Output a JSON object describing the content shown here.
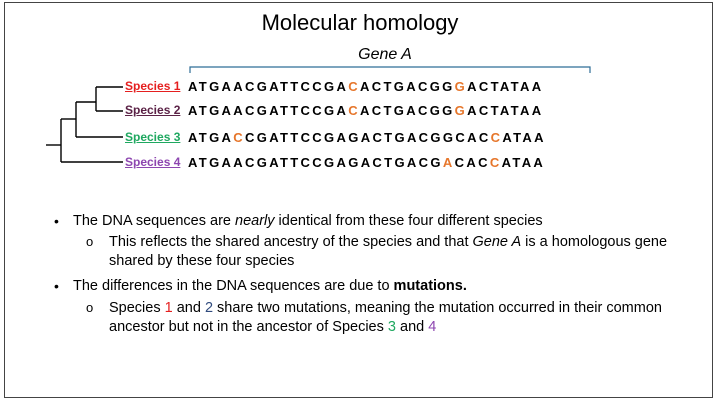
{
  "title": "Molecular homology",
  "gene_label": "Gene A",
  "rows": [
    {
      "species": "Species 1",
      "color": "#e51f1f",
      "seq_parts": [
        {
          "t": "ATGAACGATTCCGA",
          "m": false
        },
        {
          "t": "C",
          "m": true
        },
        {
          "t": "ACTGACGG",
          "m": false
        },
        {
          "t": "G",
          "m": true
        },
        {
          "t": "ACTATAA",
          "m": false
        }
      ]
    },
    {
      "species": "Species 2",
      "color": "#5b2246",
      "seq_parts": [
        {
          "t": "ATGAACGATTCCGA",
          "m": false
        },
        {
          "t": "C",
          "m": true
        },
        {
          "t": "ACTGACGG",
          "m": false
        },
        {
          "t": "G",
          "m": true
        },
        {
          "t": "ACTATAA",
          "m": false
        }
      ]
    },
    {
      "species": "Species 3",
      "color": "#1fa860",
      "seq_parts": [
        {
          "t": "ATGA",
          "m": false
        },
        {
          "t": "C",
          "m": true
        },
        {
          "t": "CGATTCCGAGACTGACGGCAC",
          "m": false
        },
        {
          "t": "C",
          "m": true
        },
        {
          "t": "ATAA",
          "m": false
        }
      ]
    },
    {
      "species": "Species 4",
      "color": "#8d46b0",
      "seq_parts": [
        {
          "t": "ATGAACGATTCCGAGACTGACG",
          "m": false
        },
        {
          "t": "A",
          "m": true
        },
        {
          "t": "CAC",
          "m": false
        },
        {
          "t": "C",
          "m": true
        },
        {
          "t": "ATAA",
          "m": false
        }
      ]
    }
  ],
  "mutation_color": "#e6762b",
  "bullets": {
    "b1": {
      "pre": "The DNA sequences are ",
      "em": "nearly",
      "post": " identical from these four different species"
    },
    "sub1": {
      "pre": "This reflects the shared ancestry of the species and that ",
      "em": "Gene A",
      "post": " is a homologous gene shared by these four species"
    },
    "b2": {
      "pre": "The differences in the DNA sequences are due to ",
      "strong": "mutations."
    },
    "sub2": {
      "p1": "Species ",
      "n1": "1",
      "p2": " and ",
      "n2": "2",
      "p3": " share two mutations, meaning the mutation occurred in their common ancestor but not in the ancestor of Species ",
      "n3": "3",
      "p4": " and ",
      "n4": "4"
    }
  },
  "bullet_glyph": "•",
  "sub_bullet_glyph": "o"
}
